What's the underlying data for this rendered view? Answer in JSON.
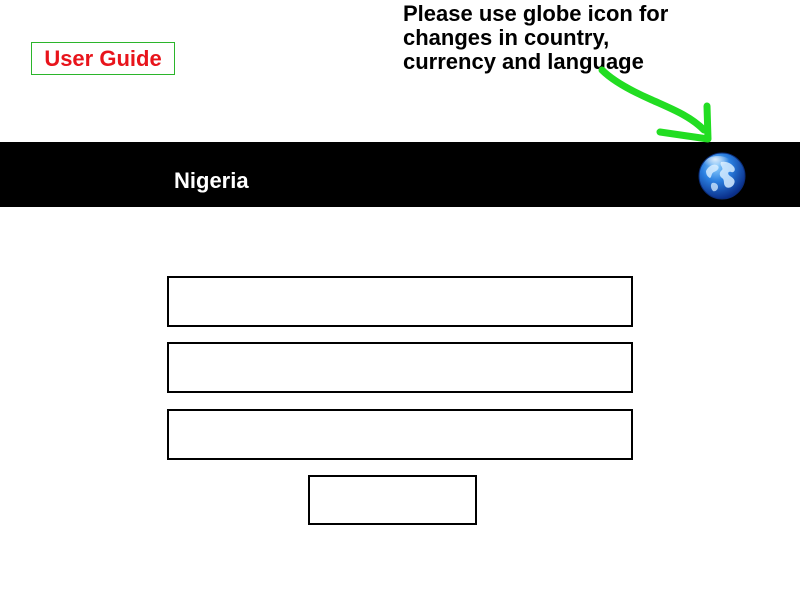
{
  "header": {
    "user_guide_label": "User Guide",
    "hint_lines": [
      "Please use globe icon for",
      "changes in country,",
      "currency and language"
    ]
  },
  "topbar": {
    "country": "Nigeria",
    "globe_icon": "globe-icon"
  },
  "form": {
    "field_1_value": "",
    "field_2_value": "",
    "field_3_value": "",
    "submit_label": ""
  },
  "colors": {
    "user_guide_text": "#e8141b",
    "user_guide_border": "#2bb52b",
    "arrow": "#22dd22",
    "bar": "#000000"
  }
}
